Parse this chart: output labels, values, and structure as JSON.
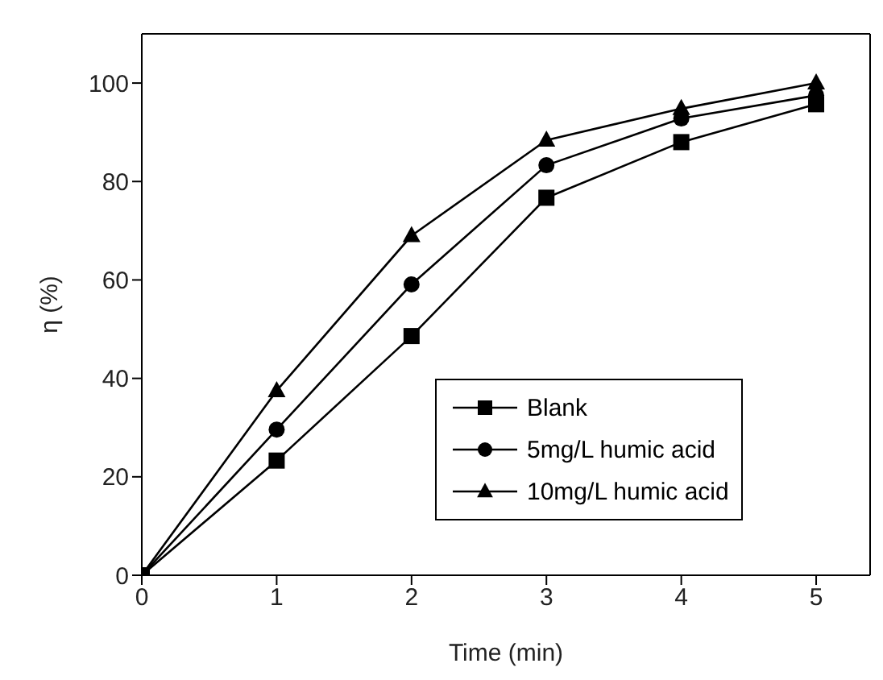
{
  "chart_data": {
    "type": "line",
    "xlabel": "Time (min)",
    "ylabel": "η (%)",
    "x": [
      0,
      1,
      2,
      3,
      4,
      5
    ],
    "xlim": [
      0,
      5.4
    ],
    "xticks": [
      0,
      1,
      2,
      3,
      4,
      5
    ],
    "ylim": [
      0,
      110
    ],
    "yticks": [
      0,
      20,
      40,
      60,
      80,
      100
    ],
    "grid": false,
    "legend": "bottom right",
    "line_style": "solid",
    "series": [
      {
        "name": "Blank",
        "color": "#000000",
        "marker": "square",
        "values": [
          0,
          23.3,
          48.6,
          76.7,
          88,
          95.7
        ]
      },
      {
        "name": "5mg/L  humic acid",
        "color": "#000000",
        "marker": "circle",
        "values": [
          0,
          29.6,
          59.1,
          83.3,
          92.8,
          97.5
        ]
      },
      {
        "name": "10mg/L humic acid",
        "color": "#000000",
        "marker": "triangle",
        "values": [
          0,
          37.5,
          69,
          88.4,
          94.8,
          100
        ]
      }
    ]
  }
}
